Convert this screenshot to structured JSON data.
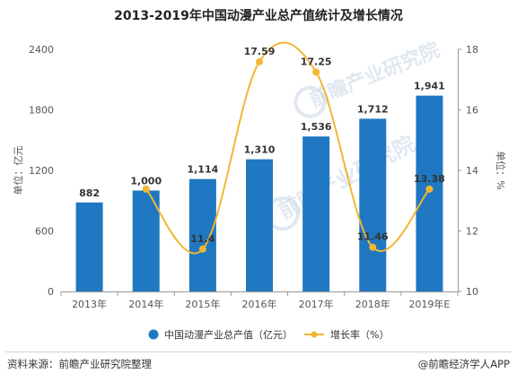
{
  "chart_data": {
    "type": "bar+line",
    "title": "2013-2019年中国动漫产业总产值统计及增长情况",
    "categories": [
      "2013年",
      "2014年",
      "2015年",
      "2016年",
      "2017年",
      "2018年",
      "2019年E"
    ],
    "series": [
      {
        "name": "中国动漫产业总产值（亿元）",
        "type": "bar",
        "axis": "left",
        "values": [
          882,
          1000,
          1114,
          1310,
          1536,
          1712,
          1941
        ],
        "labels": [
          "882",
          "1,000",
          "1,114",
          "1,310",
          "1,536",
          "1,712",
          "1,941"
        ]
      },
      {
        "name": "增长率（%）",
        "type": "line",
        "axis": "right",
        "values": [
          null,
          13.38,
          11.4,
          17.59,
          17.25,
          11.46,
          13.38
        ],
        "labels": [
          "",
          "",
          "11.4",
          "17.59",
          "17.25",
          "11.46",
          "13.38"
        ]
      }
    ],
    "y_left": {
      "label": "单位：亿元",
      "ylim": [
        0,
        2400
      ],
      "ticks": [
        "0",
        "600",
        "1200",
        "1800",
        "2400"
      ]
    },
    "y_right": {
      "label": "单位：%",
      "ylim": [
        10,
        18
      ],
      "ticks": [
        "10",
        "12",
        "14",
        "16",
        "18"
      ]
    },
    "grid": false,
    "legend": "bottom"
  },
  "colors": {
    "bar": "#1f78c1",
    "line": "#f2b632",
    "watermark": "#c9d6e6"
  },
  "footer": {
    "source": "资料来源：前瞻产业研究院整理",
    "brand": "@前瞻经济学人APP"
  },
  "watermark": {
    "text": "前瞻产业研究院"
  }
}
